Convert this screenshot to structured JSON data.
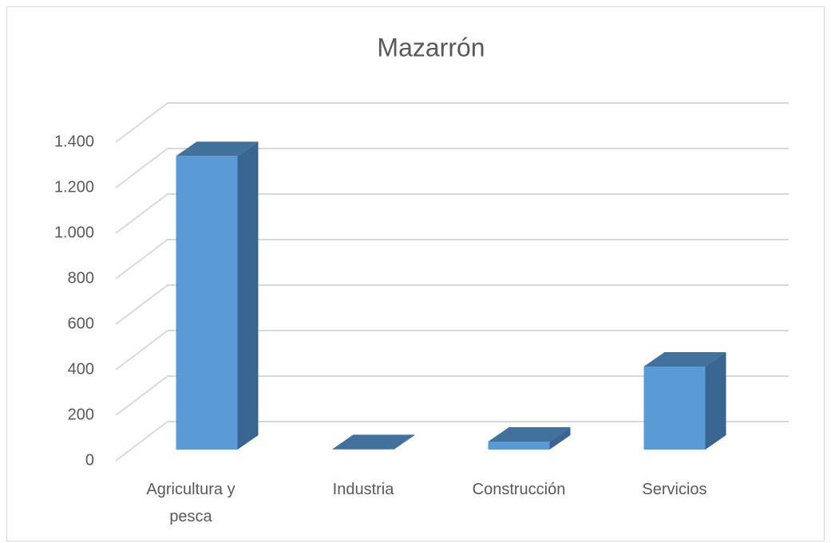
{
  "chart_data": {
    "type": "bar3d",
    "title": "Mazarrón",
    "categories": [
      "Agricultura y pesca",
      "Industria",
      "Construcción",
      "Servicios"
    ],
    "values": [
      1290,
      2,
      35,
      365
    ],
    "color": "#5b9bd5",
    "ylim": [
      0,
      1400
    ],
    "yticks": [
      0,
      200,
      400,
      600,
      800,
      {
        "value": 1000,
        "label": "1.000"
      },
      {
        "value": 1200,
        "label": "1.200"
      },
      {
        "value": 1400,
        "label": "1.400"
      }
    ],
    "grid": true
  }
}
